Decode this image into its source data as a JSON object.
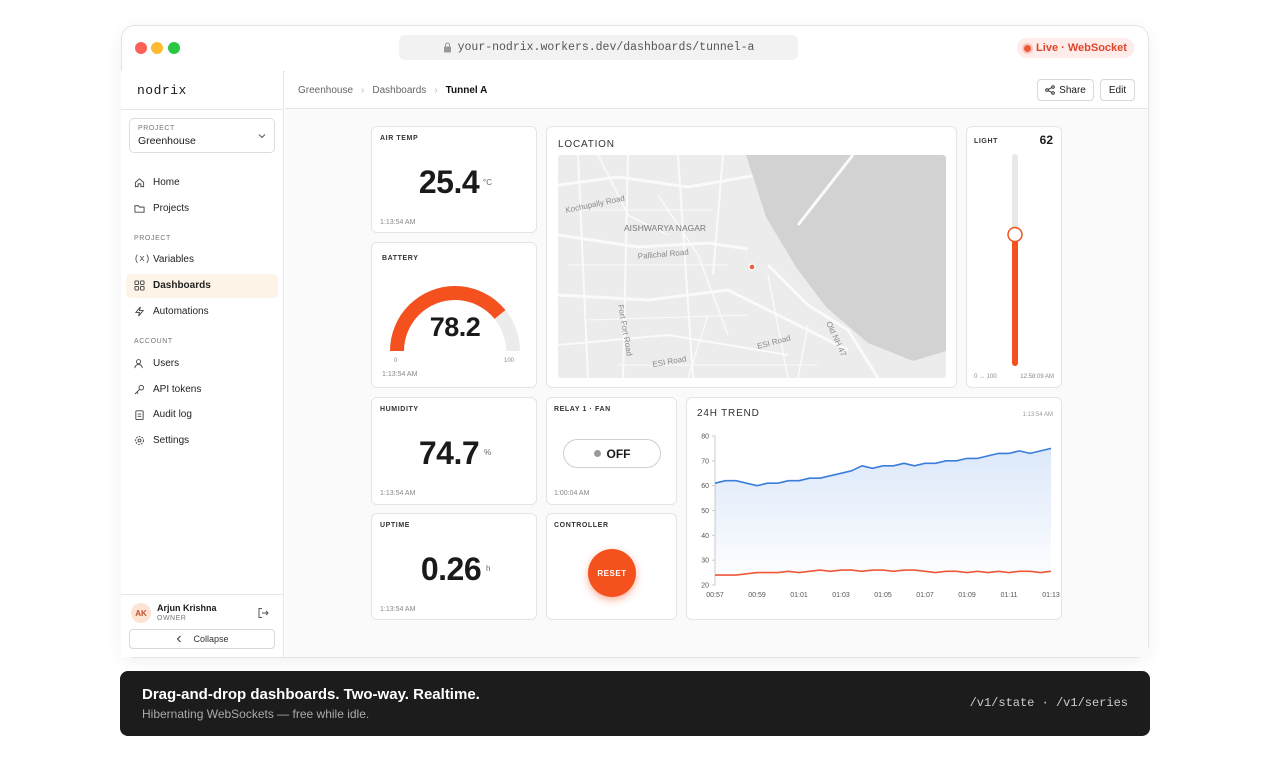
{
  "browser": {
    "url": "your-nodrix.workers.dev/dashboards/tunnel-a",
    "status": "Live · WebSocket"
  },
  "sidebar": {
    "logo": "nodrix",
    "project_label": "PROJECT",
    "project_name": "Greenhouse",
    "nav": [
      "Home",
      "Projects"
    ],
    "sections": [
      {
        "title": "PROJECT",
        "items": [
          "Variables",
          "Dashboards",
          "Automations"
        ]
      },
      {
        "title": "ACCOUNT",
        "items": [
          "Users",
          "API tokens",
          "Audit log",
          "Settings"
        ]
      }
    ],
    "user": {
      "initials": "AK",
      "name": "Arjun Krishna",
      "role": "OWNER"
    },
    "collapse": "Collapse"
  },
  "header": {
    "breadcrumbs": [
      "Greenhouse",
      "Dashboards",
      "Tunnel A"
    ],
    "actions": [
      "Share",
      "Edit"
    ]
  },
  "widgets": {
    "air_temp": {
      "title": "AIR TEMP",
      "value": 25.4,
      "unit": "°C",
      "time": "1:13:54 AM"
    },
    "battery": {
      "title": "BATTERY",
      "value": 78.2,
      "min": 0,
      "max": 100,
      "time": "1:13:54 AM"
    },
    "location": {
      "title": "LOCATION",
      "labels": [
        "Kochupally Road",
        "AISHWARYA NAGAR",
        "Pallichal Road",
        "ESI Road",
        "ESI Road",
        "Old NH 47",
        "Fort Fort Road"
      ]
    },
    "light": {
      "title": "LIGHT",
      "value": 62,
      "range": [
        0,
        100
      ],
      "range_label": "0 → 100",
      "time": "12:58:09 AM"
    },
    "humidity": {
      "title": "HUMIDITY",
      "value": 74.7,
      "unit": "%",
      "time": "1:13:54 AM"
    },
    "relay": {
      "title": "RELAY 1 · FAN",
      "state": "OFF",
      "time": "1:00:04 AM"
    },
    "uptime": {
      "title": "UPTIME",
      "value": 0.26,
      "unit": "h",
      "time": "1:13:54 AM"
    },
    "controller": {
      "title": "CONTROLLER",
      "button": "RESET"
    }
  },
  "chart_data": {
    "type": "line",
    "title": "24H TREND",
    "annotation": "1:13:54 AM",
    "categories": [
      "00:57",
      null,
      null,
      null,
      "00:59",
      null,
      null,
      null,
      "01:01",
      null,
      null,
      null,
      "01:03",
      null,
      null,
      null,
      "01:05",
      null,
      null,
      null,
      "01:07",
      null,
      null,
      null,
      "01:09",
      null,
      null,
      null,
      "01:11",
      null,
      null,
      null,
      "01:13"
    ],
    "series": [
      {
        "color": "#3b7ddd",
        "values": [
          61,
          62,
          62,
          61,
          60,
          61,
          61,
          62,
          62,
          63,
          63,
          64,
          65,
          66,
          68,
          67,
          68,
          68,
          69,
          68,
          69,
          69,
          70,
          70,
          71,
          71,
          72,
          73,
          73,
          74,
          73,
          74,
          75
        ]
      },
      {
        "color": "#f0583a",
        "values": [
          24,
          24,
          24,
          24.5,
          25,
          25,
          25,
          25.5,
          25,
          25.5,
          26,
          25.5,
          26,
          26,
          25.5,
          26,
          26,
          25.5,
          26,
          26,
          25.5,
          25,
          25.5,
          25.5,
          25,
          25.5,
          25,
          25.5,
          25,
          25.5,
          25.5,
          25,
          25.5
        ]
      }
    ],
    "ylim": [
      20,
      80
    ],
    "yticks": [
      20,
      30,
      40,
      50,
      60,
      70,
      80
    ],
    "area_fill": true
  },
  "footer": {
    "headline": "Drag-and-drop dashboards. Two-way. Realtime.",
    "subline": "Hibernating WebSockets — free while idle.",
    "endpoints": "/v1/state · /v1/series"
  }
}
